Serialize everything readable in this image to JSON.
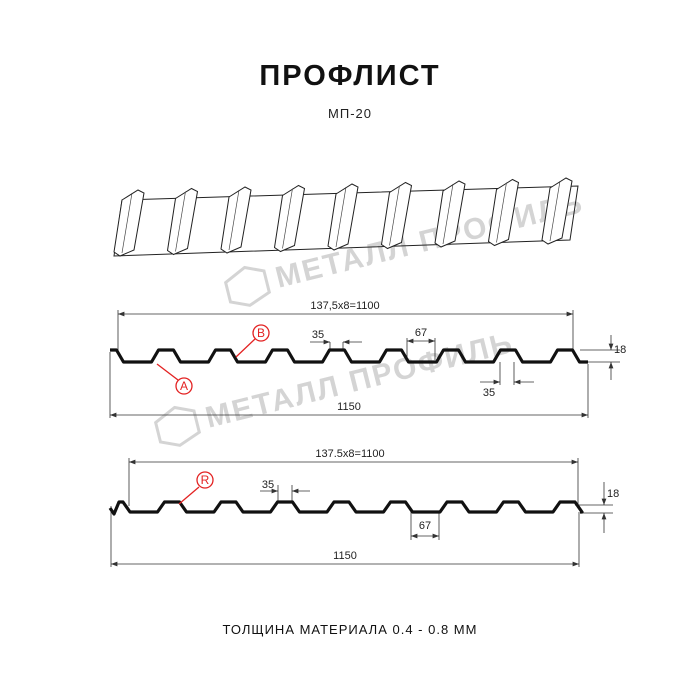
{
  "header": {
    "title": "ПРОФЛИСТ",
    "subtitle": "МП-20"
  },
  "watermark": {
    "text": "МЕТАЛЛ ПРОФИЛЬ"
  },
  "profile_a": {
    "pitch_label": "137,5x8=1100",
    "width_label": "1150",
    "top_width_label": "35",
    "bottom_width_label": "35",
    "flat_label": "67",
    "height_label": "18",
    "marker_a": "A",
    "marker_b": "B"
  },
  "profile_b": {
    "pitch_label": "137.5x8=1100",
    "width_label": "1150",
    "top_width_label": "35",
    "flat_label": "67",
    "height_label": "18",
    "marker_r": "R"
  },
  "footer": {
    "thickness": "ТОЛЩИНА МАТЕРИАЛА 0.4 - 0.8 ММ"
  },
  "colors": {
    "profile": "#111111",
    "marker": "#e32222",
    "watermark": "#d4d4d4"
  }
}
